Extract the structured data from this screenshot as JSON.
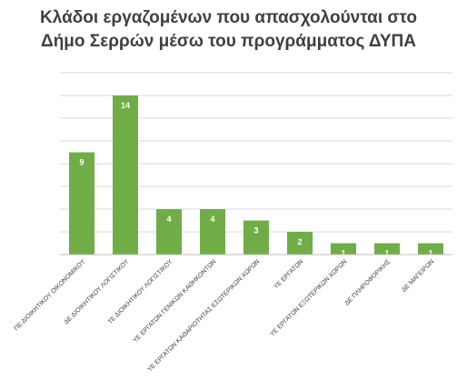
{
  "chart_data": {
    "type": "bar",
    "title_lines": [
      "Κλάδοι εργαζομένων που απασχολούνται στο",
      "Δήμο Σερρών μέσω του προγράμματος ΔΥΠΑ"
    ],
    "categories": [
      "ΠΕ ΔΙΟΙΚΗΤΙΚΟΥ ΟΙΚΟΝΟΜΙΚΟΥ",
      "ΔΕ ΔΙΟΙΚΗΤΙΚΟΥ ΛΟΓΙΣΤΙΚΟΥ",
      "ΤΕ ΔΙΟΙΚΗΤΙΚΟΥ ΛΟΓΙΣΤΙΚΟΥ",
      "ΥΕ ΕΡΓΑΤΩΝ ΓΕΝΙΚΩΝ ΚΑΘΗΚΟΝΤΩΝ",
      "ΥΕ ΕΡΓΑΤΩΝ ΚΑΘΑΡΙΟΤΗΤΑΣ ΕΣΩΤΕΡΙΚΩΝ ΧΩΡΩΝ",
      "ΥΕ ΕΡΓΑΤΩΝ",
      "ΥΕ ΕΡΓΑΤΩΝ ΕΞΩΤΕΡΙΚΩΝ ΧΩΡΩΝ",
      "ΔΕ ΠΛΗΡΟΦΟΡΙΚΗΣ",
      "ΔΕ ΜΑΓΕΙΡΩΝ"
    ],
    "values": [
      9,
      14,
      4,
      4,
      3,
      2,
      1,
      1,
      1
    ],
    "ylim": [
      0,
      16
    ],
    "grid": true,
    "legend": "none",
    "bar_color": "#70ad47",
    "bar_border_color": "#5b9a35",
    "label_color": "#ffffff"
  }
}
